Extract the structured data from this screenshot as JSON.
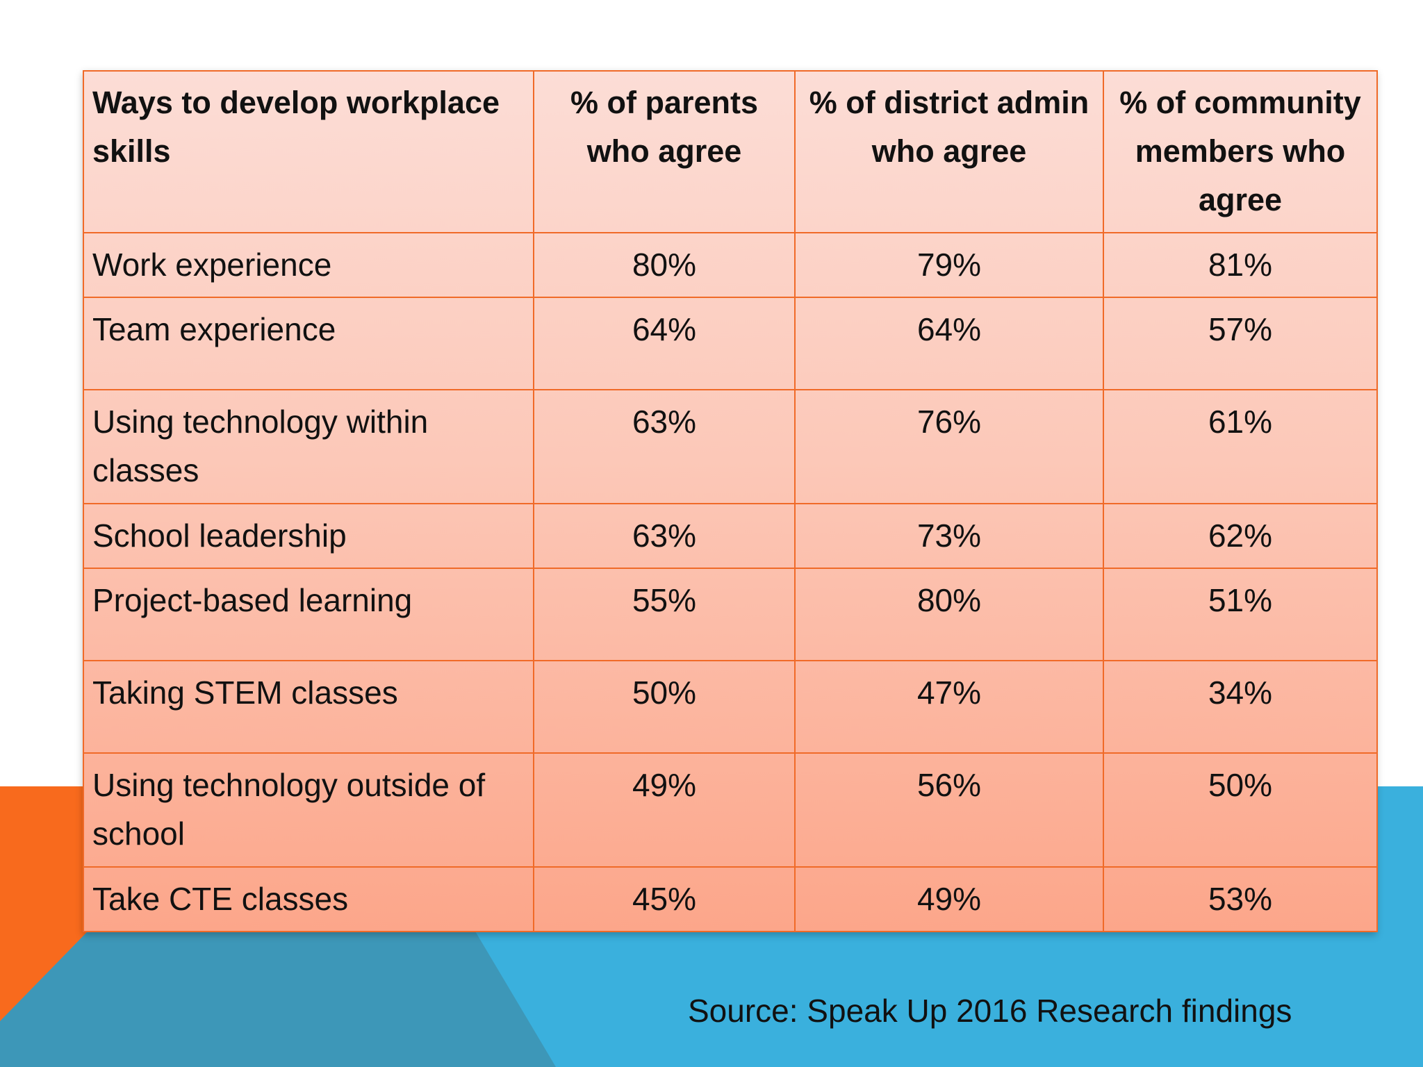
{
  "colors": {
    "orange_accent": "#f86a1d",
    "blue_accent": "#3ab0dd",
    "teal_shape": "#3d97b8",
    "table_border": "#f06a28"
  },
  "chart_data": {
    "type": "table",
    "columns": [
      "Ways to develop workplace skills",
      "% of parents who agree",
      "% of district admin who agree",
      "% of community members who agree"
    ],
    "rows": [
      {
        "label": "Work experience",
        "parents": "80%",
        "admin": "79%",
        "community": "81%"
      },
      {
        "label": "Team experience",
        "parents": "64%",
        "admin": "64%",
        "community": "57%"
      },
      {
        "label": "Using technology within classes",
        "parents": "63%",
        "admin": "76%",
        "community": "61%"
      },
      {
        "label": "School leadership",
        "parents": "63%",
        "admin": "73%",
        "community": "62%"
      },
      {
        "label": "Project-based learning",
        "parents": "55%",
        "admin": "80%",
        "community": "51%"
      },
      {
        "label": "Taking STEM classes",
        "parents": "50%",
        "admin": "47%",
        "community": "34%"
      },
      {
        "label": "Using technology outside of school",
        "parents": "49%",
        "admin": "56%",
        "community": "50%"
      },
      {
        "label": "Take CTE classes",
        "parents": "45%",
        "admin": "49%",
        "community": "53%"
      }
    ]
  },
  "source_text": "Source:  Speak Up 2016 Research findings"
}
